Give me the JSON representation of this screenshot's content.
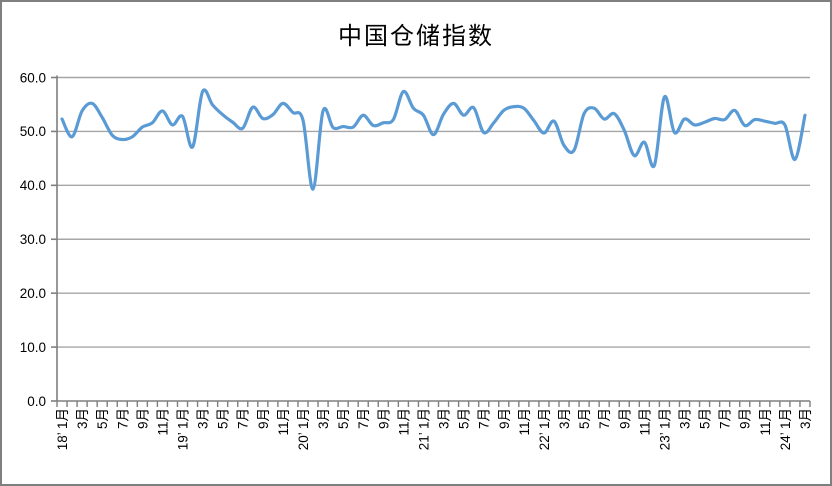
{
  "window": {
    "background": "#ffffff",
    "border_color": "#7f7f7f"
  },
  "chart_data": {
    "type": "line",
    "title": "中国仓储指数",
    "series_name": "中国仓储指数",
    "legend": "none",
    "grid": "horizontal-major",
    "x_axis": {
      "tick_interval_months": 1,
      "label_interval_months": 2,
      "label_rotation_deg": -90,
      "categories": [
        "18’ 1月",
        "",
        "3月",
        "",
        "5月",
        "",
        "7月",
        "",
        "9月",
        "",
        "11月",
        "",
        "19’ 1月",
        "",
        "3月",
        "",
        "5月",
        "",
        "7月",
        "",
        "9月",
        "",
        "11月",
        "",
        "20’ 1月",
        "",
        "3月",
        "",
        "5月",
        "",
        "7月",
        "",
        "9月",
        "",
        "11月",
        "",
        "21’ 1月",
        "",
        "3月",
        "",
        "5月",
        "",
        "7月",
        "",
        "9月",
        "",
        "11月",
        "",
        "22’ 1月",
        "",
        "3月",
        "",
        "5月",
        "",
        "7月",
        "",
        "9月",
        "",
        "11月",
        "",
        "23’ 1月",
        "",
        "3月",
        "",
        "5月",
        "",
        "7月",
        "",
        "9月",
        "",
        "11月",
        "",
        "24’ 1月",
        "",
        "3月"
      ]
    },
    "y_axis": {
      "min": 0,
      "max": 60,
      "step": 10,
      "tick_labels": [
        "0.0",
        "10.0",
        "20.0",
        "30.0",
        "40.0",
        "50.0",
        "60.0"
      ]
    },
    "values": [
      52.3,
      49.0,
      53.8,
      55.2,
      52.6,
      49.3,
      48.5,
      49.0,
      50.8,
      51.6,
      53.8,
      51.2,
      52.8,
      47.1,
      57.4,
      54.9,
      53.1,
      51.7,
      50.6,
      54.5,
      52.4,
      53.1,
      55.2,
      53.5,
      52.1,
      39.3,
      53.8,
      50.7,
      50.9,
      50.8,
      53.0,
      51.1,
      51.6,
      52.2,
      57.4,
      54.3,
      53.0,
      49.4,
      53.2,
      55.2,
      53.0,
      54.4,
      49.8,
      51.6,
      53.9,
      54.6,
      54.3,
      52.0,
      49.7,
      51.9,
      47.4,
      46.5,
      53.3,
      54.3,
      52.3,
      53.3,
      50.2,
      45.5,
      48.0,
      43.7,
      56.4,
      49.8,
      52.3,
      51.2,
      51.7,
      52.4,
      52.2,
      53.9,
      51.1,
      52.2,
      51.9,
      51.5,
      51.2,
      44.8,
      53.0
    ],
    "colors": {
      "line": "#5b9bd5",
      "gridline": "#a6a6a6",
      "axis": "#7f7f7f",
      "text": "#000000"
    },
    "line_width": 3.2
  }
}
